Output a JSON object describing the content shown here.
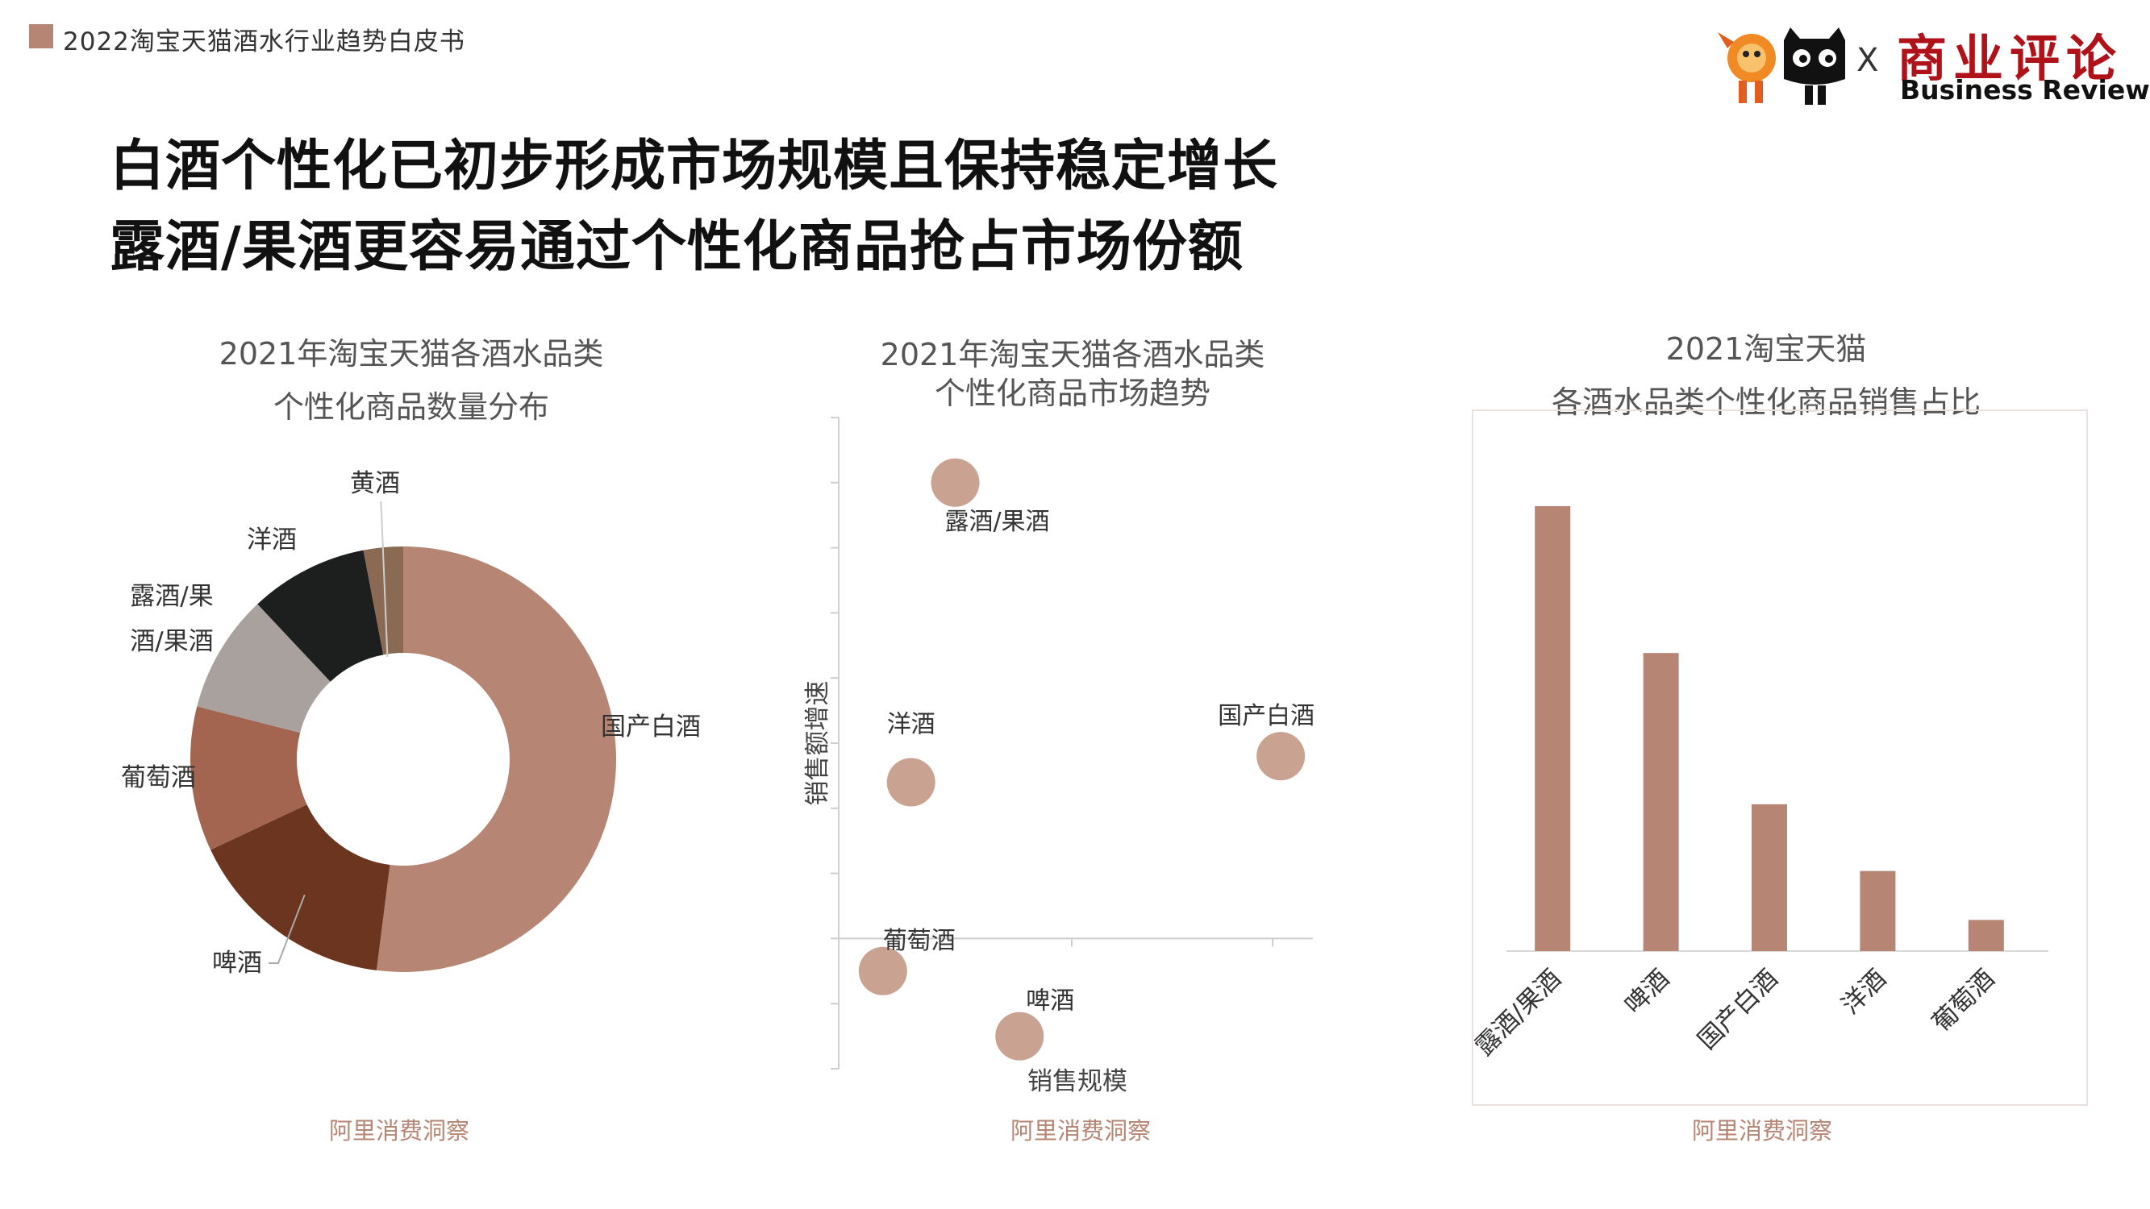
{
  "header": {
    "report_title": "2022淘宝天猫酒水行业趋势白皮书"
  },
  "headline": {
    "line1": "白酒个性化已初步形成市场规模且保持稳定增长",
    "line2": "露酒/果酒更容易通过个性化商品抢占市场份额"
  },
  "logo": {
    "x_mark": "X",
    "partner_cn": "商业评论",
    "partner_en": "Business Review",
    "left_mascot": "mascot-icon",
    "right_mascot": "tmall-cat-icon"
  },
  "colors": {
    "accent": "#b68573",
    "dark_brown": "#6b3520",
    "medium_brown": "#a36550",
    "gray": "#a8a19d",
    "black": "#1c1f1d",
    "khaki": "#8a6a52",
    "bubble": "#caa291",
    "logo_red": "#b0121a"
  },
  "charts": {
    "donut": {
      "title_line1": "2021年淘宝天猫各酒水品类",
      "title_line2": "个性化商品数量分布",
      "source": "阿里消费洞察"
    },
    "scatter": {
      "title_line1": "2021年淘宝天猫各酒水品类",
      "title_line2": "个性化商品市场趋势",
      "source": "阿里消费洞察"
    },
    "bar": {
      "title_line1": "2021淘宝天猫",
      "title_line2": "各酒水品类个性化商品销售占比",
      "source": "阿里消费洞察"
    }
  },
  "chart_data": [
    {
      "type": "pie",
      "title": "2021年淘宝天猫各酒水品类个性化商品数量分布",
      "slices": [
        {
          "label": "国产白酒",
          "value": 52,
          "color": "#b68573"
        },
        {
          "label": "啤酒",
          "value": 16,
          "color": "#6b3520"
        },
        {
          "label": "葡萄酒",
          "value": 11,
          "color": "#a36550"
        },
        {
          "label": "露酒/果酒",
          "value": 9,
          "color": "#a8a19d"
        },
        {
          "label": "洋酒",
          "value": 9,
          "color": "#1c1f1d"
        },
        {
          "label": "黄酒",
          "value": 3,
          "color": "#8a6a52"
        }
      ]
    },
    {
      "type": "scatter",
      "title": "2021年淘宝天猫各酒水品类个性化商品市场趋势",
      "xlabel": "销售规模",
      "ylabel": "销售额增速",
      "xlim": [
        -0.8,
        11
      ],
      "ylim": [
        -2,
        8
      ],
      "points": [
        {
          "label": "露酒/果酒",
          "x": 2.1,
          "y": 7
        },
        {
          "label": "洋酒",
          "x": 1.0,
          "y": 2.4
        },
        {
          "label": "国产白酒",
          "x": 10.2,
          "y": 2.8
        },
        {
          "label": "葡萄酒",
          "x": 0.3,
          "y": -0.5
        },
        {
          "label": "啤酒",
          "x": 3.7,
          "y": -1.5
        }
      ]
    },
    {
      "type": "bar",
      "title": "2021淘宝天猫各酒水品类个性化商品销售占比",
      "categories": [
        "露酒/果酒",
        "啤酒",
        "国产白酒",
        "洋酒",
        "葡萄酒"
      ],
      "values": [
        100,
        67,
        33,
        18,
        7
      ],
      "ylim": [
        0,
        100
      ]
    }
  ]
}
